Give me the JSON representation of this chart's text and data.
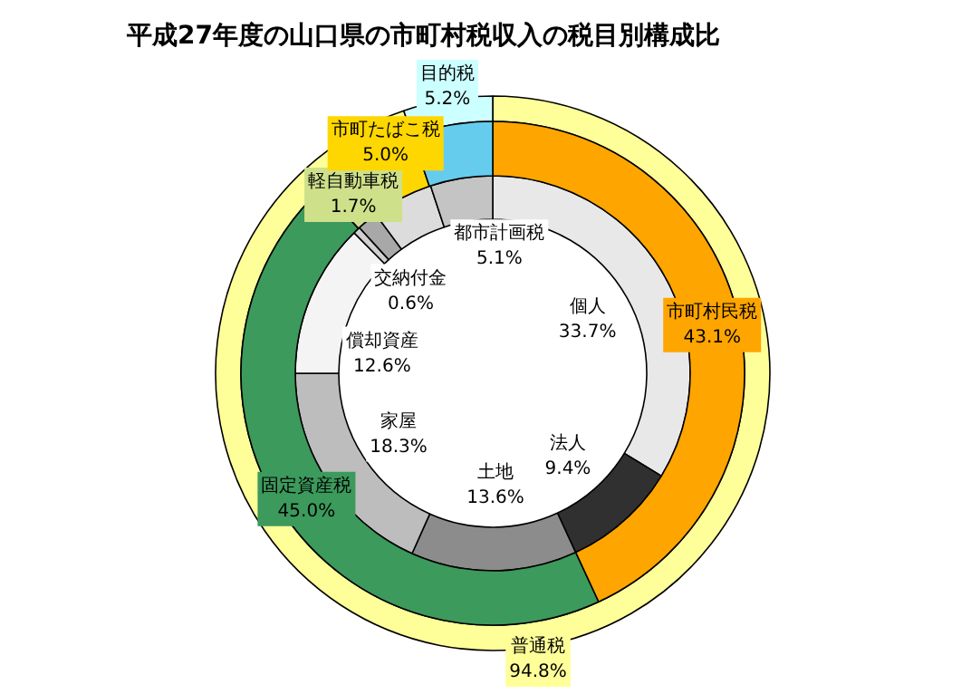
{
  "chart_data": [
    {
      "type": "donut",
      "title": "平成27年度の山口県の市町村税収入の税目別構成比",
      "categories": [
        "普通税",
        "目的税"
      ],
      "values": [
        94.8,
        5.2
      ],
      "colors": [
        "#ffff99",
        "#ccffff"
      ],
      "value_labels": [
        "94.8%",
        "5.2%"
      ]
    },
    {
      "type": "donut",
      "categories": [
        "市町村民税",
        "固定資産税",
        "軽自動車税",
        "市町たばこ税",
        null
      ],
      "values": [
        43.1,
        45.0,
        1.7,
        5.0,
        5.2
      ],
      "colors": [
        "#ffa500",
        "#3c9a5c",
        "#cfe08a",
        "#ffd700",
        "#66ccee"
      ],
      "value_labels": [
        "43.1%",
        "45.0%",
        "1.7%",
        "5.0%",
        null
      ]
    },
    {
      "type": "donut",
      "categories": [
        "個人",
        "法人",
        "土地",
        "家屋",
        "償却資産",
        "交納付金",
        null,
        null,
        "都市計画税"
      ],
      "values": [
        33.7,
        9.4,
        13.6,
        18.3,
        12.6,
        0.6,
        1.7,
        5.0,
        5.1
      ],
      "colors": [
        "#e8e8e8",
        "#303030",
        "#8c8c8c",
        "#bdbdbd",
        "#f4f4f4",
        "#d0d0d0",
        "#a8a8a8",
        "#dcdcdc",
        "#c4c4c4"
      ],
      "value_labels": [
        "33.7%",
        "9.4%",
        "13.6%",
        "18.3%",
        "12.6%",
        "0.6%",
        null,
        null,
        "5.1%"
      ]
    }
  ]
}
